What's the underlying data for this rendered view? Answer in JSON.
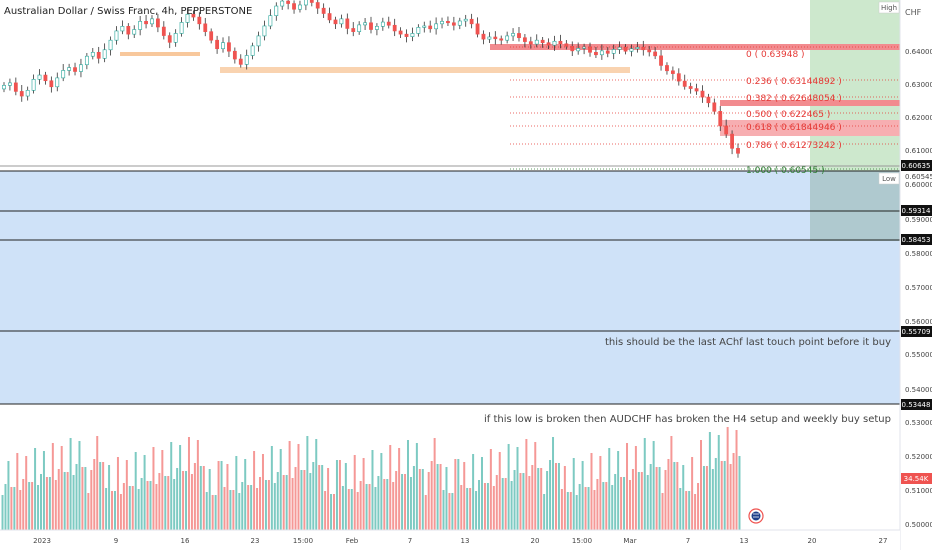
{
  "header": {
    "symbol_title": "Australian Dollar / Swiss Franc, 4h, PEPPERSTONE",
    "currency": "CHF",
    "high_marker": "High",
    "low_marker": "Low"
  },
  "colors": {
    "up": "#26a69a",
    "down": "#ef5350",
    "zone_fill": "#cfe2f8",
    "target_fill": "#cde8cd",
    "stop_fill": "#b8c4d4",
    "resistance": "#f28b8f",
    "fib_text": "#e53935",
    "fib_base_text": "#2e7d32"
  },
  "chart_data": {
    "type": "candlestick",
    "symbol": "Australian Dollar / Swiss Franc",
    "timeframe": "4h",
    "source": "PEPPERSTONE",
    "y_axis": {
      "range": [
        0.4995,
        0.6485
      ],
      "ticks": [
        "0.64000",
        "0.63000",
        "0.62000",
        "0.61000",
        "0.60000",
        "0.59000",
        "0.58000",
        "0.57000",
        "0.56000",
        "0.55000",
        "0.54000",
        "0.53000",
        "0.52000",
        "0.51000",
        "0.50000"
      ]
    },
    "x_axis": {
      "ticks": [
        "2023",
        "9",
        "16",
        "23",
        "15:00",
        "Feb",
        "7",
        "13",
        "20",
        "15:00",
        "Mar",
        "7",
        "13",
        "20",
        "27"
      ]
    },
    "price_labels": [
      "0.60635",
      "0.60545",
      "0.59314",
      "0.58453",
      "0.55709",
      "0.53448",
      "34.54K"
    ],
    "horizontal_levels": [
      0.60545,
      0.59314,
      0.58453,
      0.55709,
      0.53448
    ],
    "close_series": [
      0.6245,
      0.6252,
      0.6228,
      0.6215,
      0.6231,
      0.6262,
      0.6274,
      0.6258,
      0.6241,
      0.6266,
      0.6287,
      0.6295,
      0.6284,
      0.6303,
      0.6327,
      0.6338,
      0.6321,
      0.6345,
      0.6372,
      0.6398,
      0.6411,
      0.6389,
      0.6402,
      0.6425,
      0.6418,
      0.6432,
      0.6409,
      0.6385,
      0.6366,
      0.6391,
      0.6422,
      0.6445,
      0.6437,
      0.6418,
      0.6396,
      0.6372,
      0.6348,
      0.6365,
      0.6341,
      0.6319,
      0.6304,
      0.6329,
      0.6356,
      0.6384,
      0.6412,
      0.6441,
      0.6468,
      0.6482,
      0.6475,
      0.6459,
      0.6471,
      0.6486,
      0.6478,
      0.6462,
      0.6447,
      0.6429,
      0.6418,
      0.6432,
      0.6405,
      0.6396,
      0.6415,
      0.6421,
      0.6402,
      0.6411,
      0.6423,
      0.6414,
      0.6398,
      0.6389,
      0.6382,
      0.6391,
      0.6408,
      0.6412,
      0.6404,
      0.6418,
      0.6425,
      0.6421,
      0.6414,
      0.6426,
      0.6431,
      0.6418,
      0.6389,
      0.6375,
      0.6381,
      0.6376,
      0.6372,
      0.6384,
      0.6391,
      0.6379,
      0.6368,
      0.6361,
      0.6372,
      0.6365,
      0.6358,
      0.6369,
      0.6362,
      0.6355,
      0.6342,
      0.6349,
      0.6353,
      0.6338,
      0.6331,
      0.6342,
      0.6335,
      0.6346,
      0.6352,
      0.6341,
      0.6348,
      0.6352,
      0.6345,
      0.6339,
      0.6328,
      0.6301,
      0.6286,
      0.6278,
      0.6257,
      0.6242,
      0.6236,
      0.6229,
      0.6212,
      0.6196,
      0.6172,
      0.6131,
      0.6108,
      0.6068,
      0.6054
    ],
    "fibonacci": [
      {
        "ratio": "0",
        "value": "0.63948"
      },
      {
        "ratio": "0.236",
        "value": "0.63144892"
      },
      {
        "ratio": "0.382",
        "value": "0.62648054"
      },
      {
        "ratio": "0.500",
        "value": "0.622465"
      },
      {
        "ratio": "0.618",
        "value": "0.61844946"
      },
      {
        "ratio": "0.786",
        "value": "0.61273242"
      },
      {
        "ratio": "1.000",
        "value": "0.60545"
      }
    ],
    "annotations": [
      "this should be the last AChf last touch point before it buy",
      "if this low is broken then AUDCHF has broken the H4 setup and weekly buy setup"
    ],
    "volume_label": "34.54K"
  }
}
